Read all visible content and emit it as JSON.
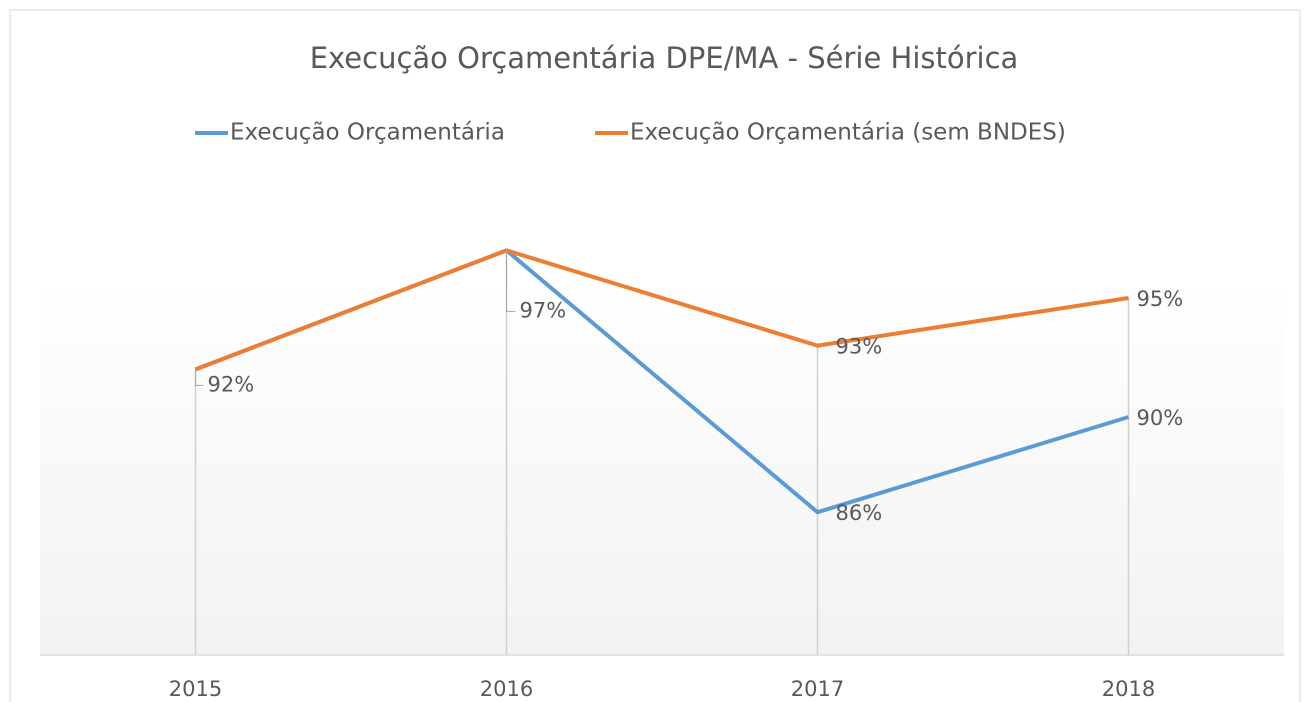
{
  "chart_data": {
    "type": "line",
    "title": "Execução Orçamentária DPE/MA - Série Histórica",
    "categories": [
      "2015",
      "2016",
      "2017",
      "2018"
    ],
    "series": [
      {
        "name": "Execução Orçamentária",
        "color": "#5b9bd5",
        "values": [
          92,
          97,
          86,
          90
        ],
        "value_labels": [
          null,
          null,
          "86%",
          "90%"
        ]
      },
      {
        "name": "Execução Orçamentária (sem BNDES)",
        "color": "#ed7d31",
        "values": [
          92,
          97,
          93,
          95
        ],
        "value_labels": [
          "92%",
          "97%",
          "93%",
          "95%"
        ]
      }
    ],
    "ylim": [
      80,
      100
    ],
    "legend": "top"
  }
}
